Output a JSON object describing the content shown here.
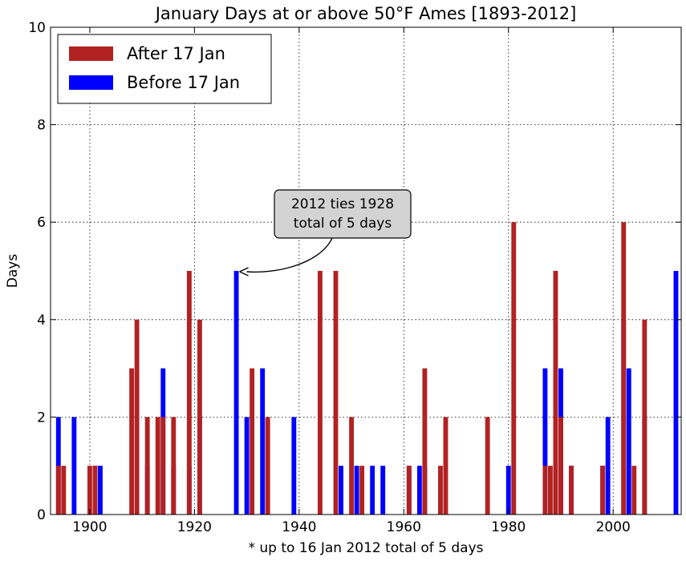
{
  "chart_data": {
    "type": "bar",
    "title": "January Days at or above 50°F Ames [1893-2012]",
    "xlabel": "* up to 16 Jan 2012 total of 5 days",
    "ylabel": "Days",
    "xlim": [
      1892.5,
      2013
    ],
    "ylim": [
      0,
      10
    ],
    "xticks": [
      1900,
      1920,
      1940,
      1960,
      1980,
      2000
    ],
    "yticks": [
      0,
      2,
      4,
      6,
      8,
      10
    ],
    "grid": true,
    "legend_position": "top-left",
    "series": [
      {
        "name": "Before 17 Jan",
        "color": "#0000ff",
        "points": [
          {
            "year": 1894,
            "value": 2
          },
          {
            "year": 1897,
            "value": 2
          },
          {
            "year": 1901,
            "value": 1
          },
          {
            "year": 1902,
            "value": 1
          },
          {
            "year": 1911,
            "value": 1
          },
          {
            "year": 1914,
            "value": 3
          },
          {
            "year": 1916,
            "value": 1
          },
          {
            "year": 1919,
            "value": 1
          },
          {
            "year": 1921,
            "value": 2
          },
          {
            "year": 1928,
            "value": 5
          },
          {
            "year": 1930,
            "value": 2
          },
          {
            "year": 1933,
            "value": 3
          },
          {
            "year": 1939,
            "value": 2
          },
          {
            "year": 1948,
            "value": 1
          },
          {
            "year": 1951,
            "value": 1
          },
          {
            "year": 1954,
            "value": 1
          },
          {
            "year": 1956,
            "value": 1
          },
          {
            "year": 1961,
            "value": 1
          },
          {
            "year": 1963,
            "value": 1
          },
          {
            "year": 1964,
            "value": 1
          },
          {
            "year": 1980,
            "value": 1
          },
          {
            "year": 1987,
            "value": 3
          },
          {
            "year": 1990,
            "value": 3
          },
          {
            "year": 1992,
            "value": 1
          },
          {
            "year": 1998,
            "value": 1
          },
          {
            "year": 1999,
            "value": 2
          },
          {
            "year": 2002,
            "value": 4
          },
          {
            "year": 2003,
            "value": 3
          },
          {
            "year": 2006,
            "value": 2
          },
          {
            "year": 2012,
            "value": 5
          }
        ]
      },
      {
        "name": "After 17 Jan",
        "color": "#b22222",
        "points": [
          {
            "year": 1894,
            "value": 1
          },
          {
            "year": 1895,
            "value": 1
          },
          {
            "year": 1900,
            "value": 1
          },
          {
            "year": 1901,
            "value": 1
          },
          {
            "year": 1908,
            "value": 3
          },
          {
            "year": 1909,
            "value": 4
          },
          {
            "year": 1911,
            "value": 2
          },
          {
            "year": 1913,
            "value": 2
          },
          {
            "year": 1914,
            "value": 2
          },
          {
            "year": 1916,
            "value": 2
          },
          {
            "year": 1919,
            "value": 5
          },
          {
            "year": 1921,
            "value": 4
          },
          {
            "year": 1931,
            "value": 3
          },
          {
            "year": 1934,
            "value": 2
          },
          {
            "year": 1944,
            "value": 5
          },
          {
            "year": 1947,
            "value": 5
          },
          {
            "year": 1950,
            "value": 2
          },
          {
            "year": 1952,
            "value": 1
          },
          {
            "year": 1961,
            "value": 1
          },
          {
            "year": 1964,
            "value": 3
          },
          {
            "year": 1967,
            "value": 1
          },
          {
            "year": 1968,
            "value": 2
          },
          {
            "year": 1976,
            "value": 2
          },
          {
            "year": 1981,
            "value": 6
          },
          {
            "year": 1987,
            "value": 1
          },
          {
            "year": 1988,
            "value": 1
          },
          {
            "year": 1989,
            "value": 5
          },
          {
            "year": 1990,
            "value": 2
          },
          {
            "year": 1992,
            "value": 1
          },
          {
            "year": 1998,
            "value": 1
          },
          {
            "year": 2002,
            "value": 6
          },
          {
            "year": 2004,
            "value": 1
          },
          {
            "year": 2006,
            "value": 4
          }
        ]
      }
    ],
    "annotation": {
      "lines": [
        "2012 ties 1928",
        "total of 5 days"
      ],
      "target_year": 1928,
      "target_value": 5
    }
  }
}
